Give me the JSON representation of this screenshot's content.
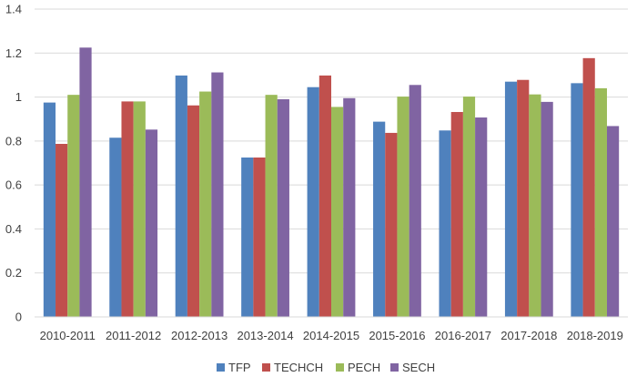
{
  "chart_data": {
    "type": "bar",
    "categories": [
      "2010-2011",
      "2011-2012",
      "2012-2013",
      "2013-2014",
      "2014-2015",
      "2015-2016",
      "2016-2017",
      "2017-2018",
      "2018-2019"
    ],
    "series": [
      {
        "name": "TFP",
        "color": "#4f81bd",
        "values": [
          0.975,
          0.815,
          1.098,
          0.725,
          1.045,
          0.888,
          0.848,
          1.07,
          1.063
        ]
      },
      {
        "name": "TECHCH",
        "color": "#c0504d",
        "values": [
          0.787,
          0.98,
          0.962,
          0.725,
          1.098,
          0.837,
          0.932,
          1.078,
          1.177
        ]
      },
      {
        "name": "PECH",
        "color": "#9bbb59",
        "values": [
          1.01,
          0.98,
          1.025,
          1.01,
          0.955,
          1.002,
          1.002,
          1.012,
          1.04
        ]
      },
      {
        "name": "SECH",
        "color": "#8064a2",
        "values": [
          1.225,
          0.852,
          1.112,
          0.99,
          0.995,
          1.055,
          0.907,
          0.978,
          0.868
        ]
      }
    ],
    "yticks": [
      "0",
      "0.2",
      "0.4",
      "0.6",
      "0.8",
      "1",
      "1.2",
      "1.4"
    ],
    "ylim": [
      0,
      1.4
    ],
    "grid": true,
    "legend_position": "bottom",
    "title": "",
    "xlabel": "",
    "ylabel": ""
  }
}
